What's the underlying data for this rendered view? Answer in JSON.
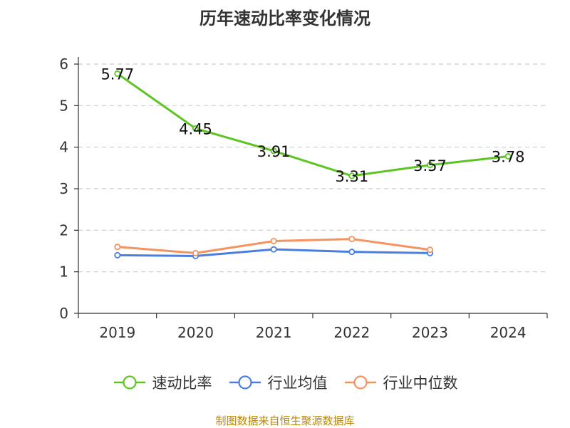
{
  "chart_data": {
    "type": "line",
    "title": "历年速动比率变化情况",
    "categories": [
      "2019",
      "2020",
      "2021",
      "2022",
      "2023",
      "2024"
    ],
    "series": [
      {
        "name": "速动比率",
        "values": [
          5.77,
          4.45,
          3.91,
          3.31,
          3.57,
          3.78
        ],
        "color": "#5cc423",
        "labels": [
          "5.77",
          "4.45",
          "3.91",
          "3.31",
          "3.57",
          "3.78"
        ]
      },
      {
        "name": "行业均值",
        "values": [
          1.4,
          1.38,
          1.54,
          1.48,
          1.45,
          null
        ],
        "color": "#4a7ee0"
      },
      {
        "name": "行业中位数",
        "values": [
          1.6,
          1.45,
          1.74,
          1.79,
          1.53,
          null
        ],
        "color": "#f5925e"
      }
    ],
    "yticks": [
      "0",
      "1",
      "2",
      "3",
      "4",
      "5",
      "6"
    ],
    "ylim": [
      0,
      6
    ],
    "grid": true,
    "legend_position": "bottom"
  },
  "footer": {
    "source": "制图数据来自恒生聚源数据库"
  }
}
